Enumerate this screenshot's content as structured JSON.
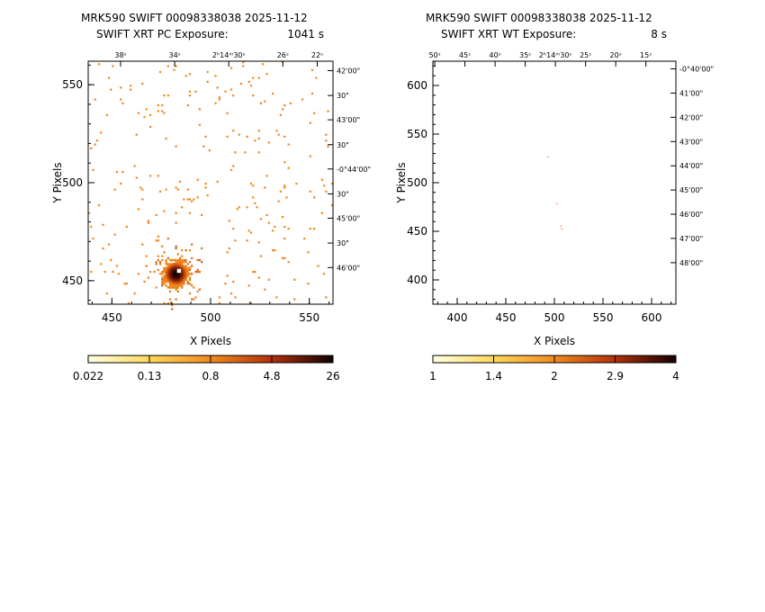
{
  "chart_data": [
    {
      "type": "heatmap",
      "title_line1": "MRK590 SWIFT 00098338038 2025-11-12",
      "title_line2_label": "SWIFT XRT PC Exposure:",
      "title_line2_value": "1041 s",
      "xlabel": "X Pixels",
      "ylabel": "Y Pixels",
      "xlim": [
        438,
        562
      ],
      "ylim": [
        438,
        562
      ],
      "x_ticks": [
        450,
        500,
        550
      ],
      "x_minor_step": 10,
      "y_ticks": [
        450,
        500,
        550
      ],
      "y_minor_step": 10,
      "ra_ticks": [
        {
          "label": "38ˢ",
          "x": 454.4
        },
        {
          "label": "34ˢ",
          "x": 481.8
        },
        {
          "label": "2ʰ14ᵐ30ˢ",
          "x": 509.2
        },
        {
          "label": "26ˢ",
          "x": 536.6
        },
        {
          "label": "22ˢ",
          "x": 554.0
        }
      ],
      "dec_ticks": [
        {
          "label": "42'00\"",
          "y": 557.2
        },
        {
          "label": "30\"",
          "y": 544.5
        },
        {
          "label": "43'00\"",
          "y": 532.1
        },
        {
          "label": "30\"",
          "y": 519.4
        },
        {
          "label": "-0°44'00\"",
          "y": 507.0
        },
        {
          "label": "30\"",
          "y": 494.3
        },
        {
          "label": "45'00\"",
          "y": 481.9
        },
        {
          "label": "30\"",
          "y": 469.2
        },
        {
          "label": "46'00\"",
          "y": 456.7
        }
      ],
      "colorbar": {
        "labels": [
          "0.022",
          "0.13",
          "0.8",
          "4.8",
          "26"
        ],
        "scale": "log",
        "range": [
          0.022,
          26
        ]
      },
      "source": {
        "x": 482,
        "y": 453,
        "peak": 26
      },
      "background_rate": 0.022
    },
    {
      "type": "heatmap",
      "title_line1": "MRK590 SWIFT 00098338038 2025-11-12",
      "title_line2_label": "SWIFT XRT WT Exposure:",
      "title_line2_value": "8 s",
      "xlabel": "X Pixels",
      "ylabel": "Y Pixels",
      "xlim": [
        375,
        625
      ],
      "ylim": [
        375,
        625
      ],
      "x_ticks": [
        400,
        450,
        500,
        550,
        600
      ],
      "x_minor_step": 10,
      "y_ticks": [
        400,
        450,
        500,
        550,
        600
      ],
      "y_minor_step": 10,
      "ra_ticks": [
        {
          "label": "50ˢ",
          "x": 376.9
        },
        {
          "label": "45ˢ",
          "x": 407.9
        },
        {
          "label": "40ˢ",
          "x": 439.0
        },
        {
          "label": "35ˢ",
          "x": 470.0
        },
        {
          "label": "2ʰ14ᵐ30ˢ",
          "x": 501.0
        },
        {
          "label": "25ˢ",
          "x": 532.1
        },
        {
          "label": "20ˢ",
          "x": 563.1
        },
        {
          "label": "15ˢ",
          "x": 594.1
        }
      ],
      "dec_ticks": [
        {
          "label": "-0°40'00\"",
          "y": 617.1
        },
        {
          "label": "41'00\"",
          "y": 592.2
        },
        {
          "label": "42'00\"",
          "y": 567.3
        },
        {
          "label": "43'00\"",
          "y": 542.3
        },
        {
          "label": "44'00\"",
          "y": 517.4
        },
        {
          "label": "45'00\"",
          "y": 492.5
        },
        {
          "label": "46'00\"",
          "y": 467.6
        },
        {
          "label": "47'00\"",
          "y": 442.7
        },
        {
          "label": "48'00\"",
          "y": 417.7
        }
      ],
      "colorbar": {
        "labels": [
          "1",
          "1.4",
          "2",
          "2.9",
          "4"
        ],
        "scale": "log",
        "range": [
          1,
          4
        ]
      },
      "events": [
        {
          "x": 493,
          "y": 526
        },
        {
          "x": 502,
          "y": 478
        },
        {
          "x": 506,
          "y": 455
        },
        {
          "x": 507,
          "y": 452
        }
      ]
    }
  ]
}
